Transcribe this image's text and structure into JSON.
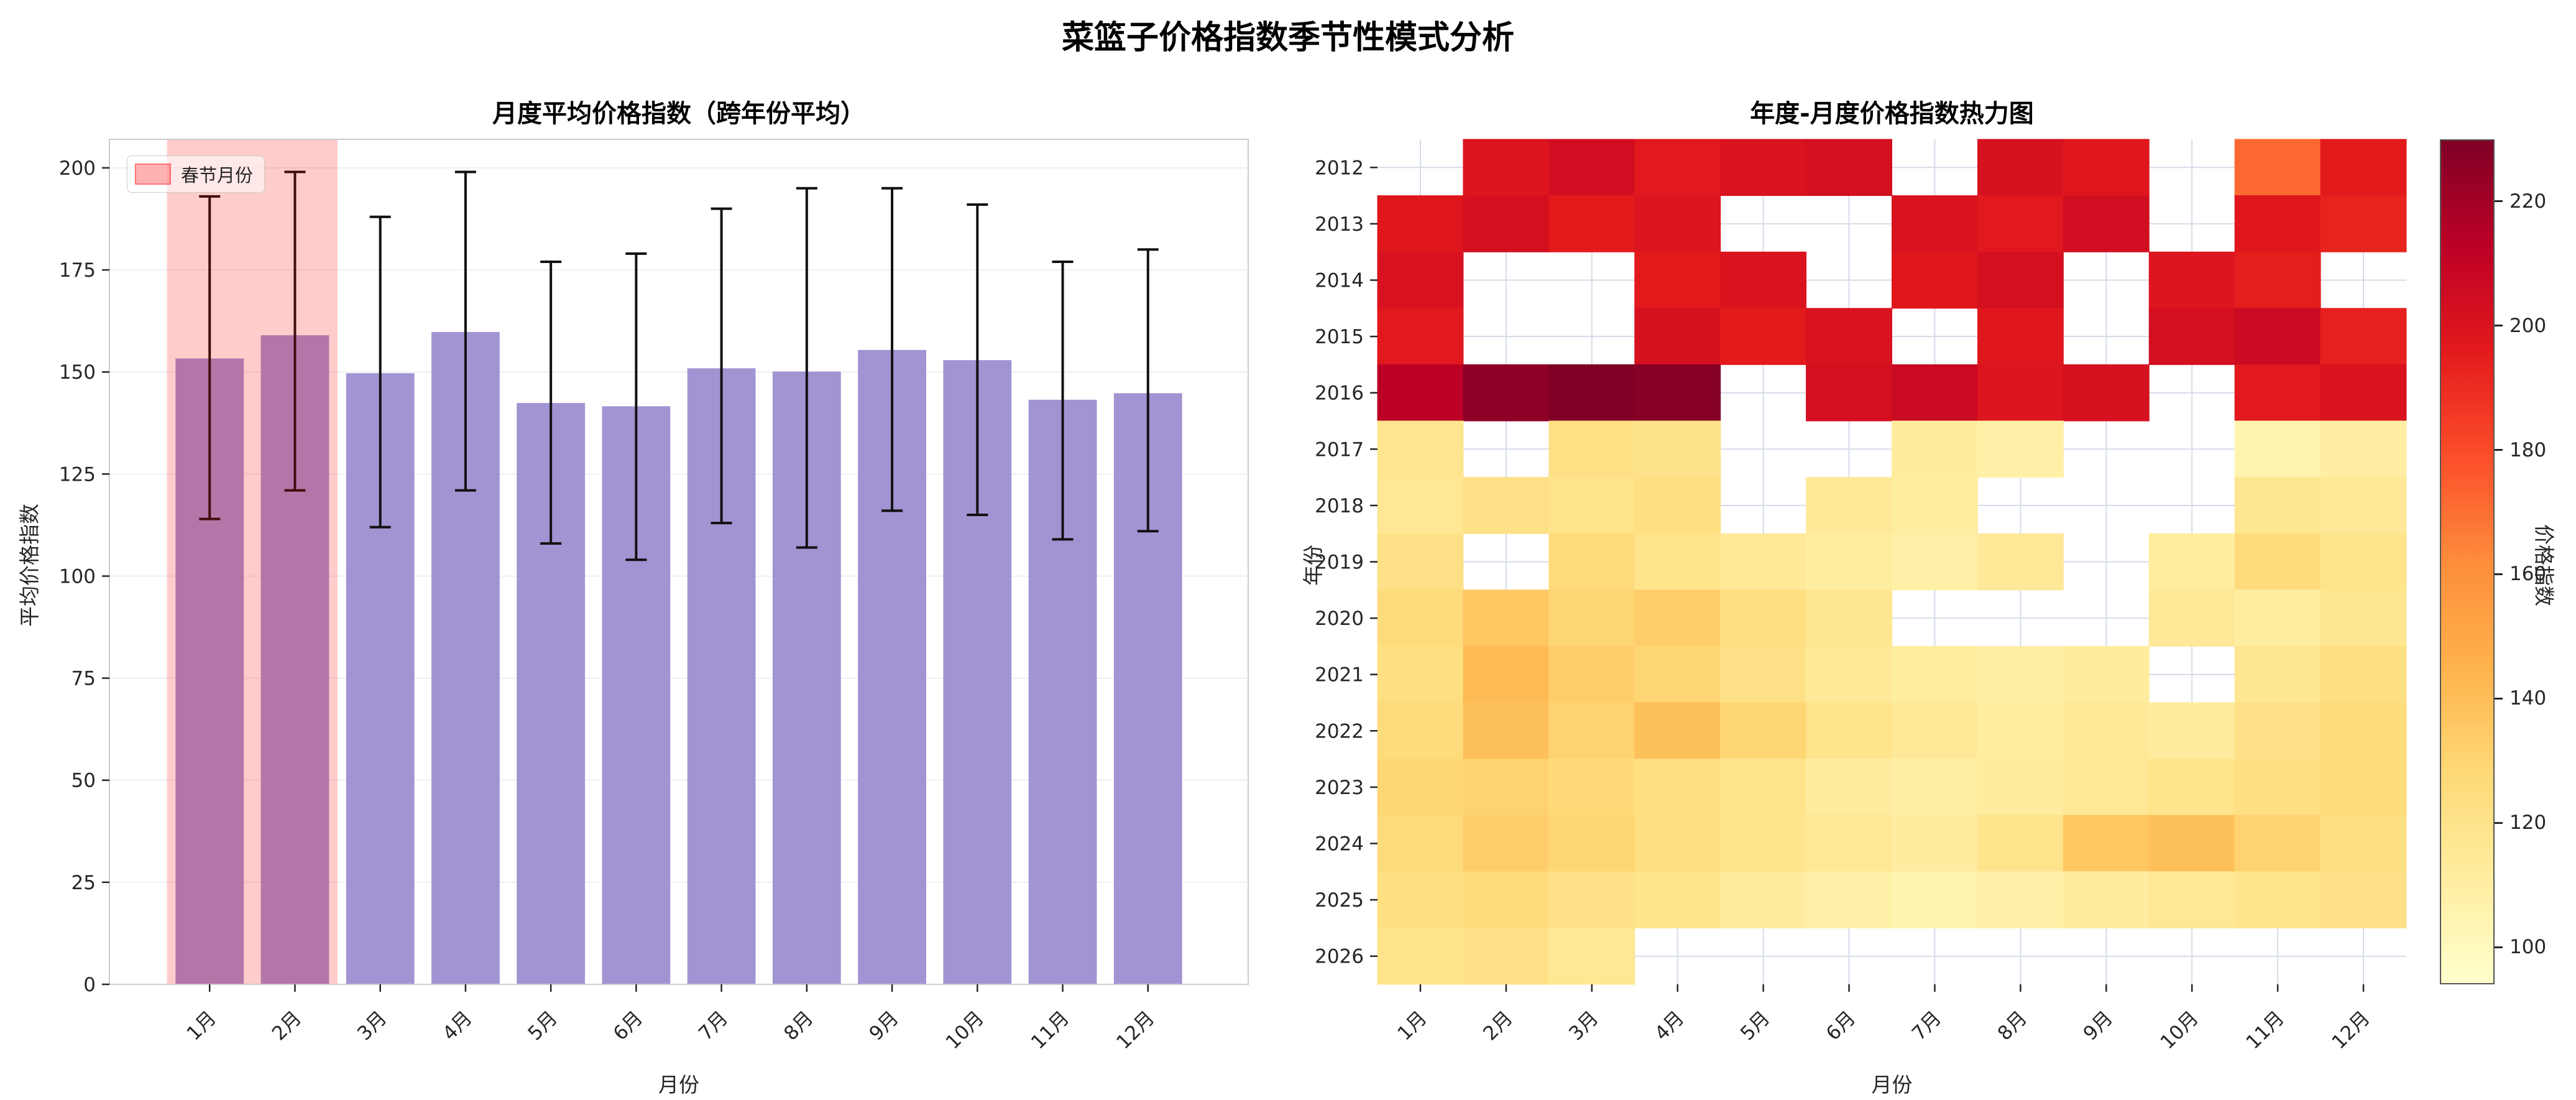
{
  "page": {
    "title": "菜篮子价格指数季节性模式分析"
  },
  "chart_data": [
    {
      "type": "bar",
      "title": "月度平均价格指数（跨年份平均）",
      "xlabel": "月份",
      "ylabel": "平均价格指数",
      "categories": [
        "1月",
        "2月",
        "3月",
        "4月",
        "5月",
        "6月",
        "7月",
        "8月",
        "9月",
        "10月",
        "11月",
        "12月"
      ],
      "values": [
        153.3,
        159.0,
        149.7,
        159.8,
        142.4,
        141.6,
        150.9,
        150.1,
        155.4,
        152.9,
        143.2,
        144.8
      ],
      "error_low": [
        114,
        121,
        112,
        121,
        108,
        104,
        113,
        107,
        116,
        115,
        109,
        111
      ],
      "error_high": [
        193,
        199,
        188,
        199,
        177,
        179,
        190,
        195,
        195,
        191,
        177,
        180
      ],
      "ylim": [
        0,
        207
      ],
      "yticks": [
        0,
        25,
        50,
        75,
        100,
        125,
        150,
        175,
        200
      ],
      "bar_color": "#a293d3",
      "grid": true,
      "legend_position": "upper-left",
      "highlight": {
        "label": "春节月份",
        "from_x": 0.5,
        "to_x": 2.5,
        "color": "#ff0000",
        "alpha": 0.2
      }
    },
    {
      "type": "heatmap",
      "title": "年度-月度价格指数热力图",
      "xlabel": "月份",
      "ylabel": "年份",
      "columns": [
        "1月",
        "2月",
        "3月",
        "4月",
        "5月",
        "6月",
        "7月",
        "8月",
        "9月",
        "10月",
        "11月",
        "12月"
      ],
      "rows": [
        "2012",
        "2013",
        "2014",
        "2015",
        "2016",
        "2017",
        "2018",
        "2019",
        "2020",
        "2021",
        "2022",
        "2023",
        "2024",
        "2025",
        "2026"
      ],
      "values": [
        [
          null,
          199,
          204,
          197,
          201,
          203,
          null,
          202,
          198,
          null,
          172,
          196
        ],
        [
          198,
          203,
          196,
          199,
          null,
          null,
          201,
          197,
          204,
          null,
          198,
          193
        ],
        [
          201,
          null,
          null,
          196,
          200,
          null,
          198,
          203,
          null,
          199,
          195,
          null
        ],
        [
          197,
          null,
          null,
          202,
          196,
          201,
          null,
          198,
          null,
          203,
          207,
          194
        ],
        [
          213,
          226,
          230,
          228,
          null,
          203,
          207,
          199,
          202,
          null,
          197,
          201
        ],
        [
          118,
          null,
          122,
          120,
          null,
          null,
          112,
          108,
          null,
          null,
          105,
          110
        ],
        [
          116,
          121,
          119,
          123,
          null,
          114,
          111,
          null,
          null,
          null,
          117,
          114
        ],
        [
          121,
          null,
          126,
          119,
          114,
          111,
          108,
          114,
          null,
          111,
          126,
          119
        ],
        [
          126,
          136,
          129,
          133,
          123,
          117,
          null,
          null,
          null,
          114,
          111,
          117
        ],
        [
          123,
          141,
          133,
          129,
          121,
          114,
          111,
          109,
          112,
          null,
          117,
          123
        ],
        [
          126,
          139,
          131,
          139,
          129,
          119,
          114,
          111,
          114,
          112,
          121,
          126
        ],
        [
          129,
          131,
          127,
          123,
          119,
          112,
          109,
          112,
          116,
          119,
          123,
          126
        ],
        [
          126,
          133,
          129,
          123,
          119,
          116,
          112,
          119,
          136,
          139,
          131,
          123
        ],
        [
          123,
          126,
          121,
          119,
          112,
          108,
          105,
          108,
          112,
          116,
          119,
          121
        ],
        [
          119,
          121,
          116,
          null,
          null,
          null,
          null,
          null,
          null,
          null,
          null,
          null
        ]
      ],
      "vmin": 94,
      "vmax": 230,
      "colormap": "YlOrRd",
      "colormap_stops": [
        [
          0.0,
          "#ffffcc"
        ],
        [
          0.125,
          "#ffeda0"
        ],
        [
          0.25,
          "#fed976"
        ],
        [
          0.375,
          "#feb24c"
        ],
        [
          0.5,
          "#fd8d3c"
        ],
        [
          0.625,
          "#fc4e2a"
        ],
        [
          0.75,
          "#e31a1c"
        ],
        [
          0.875,
          "#bd0026"
        ],
        [
          1.0,
          "#800026"
        ]
      ],
      "colorbar": {
        "label": "价格指数",
        "ticks": [
          100,
          120,
          140,
          160,
          180,
          200,
          220
        ]
      }
    }
  ]
}
